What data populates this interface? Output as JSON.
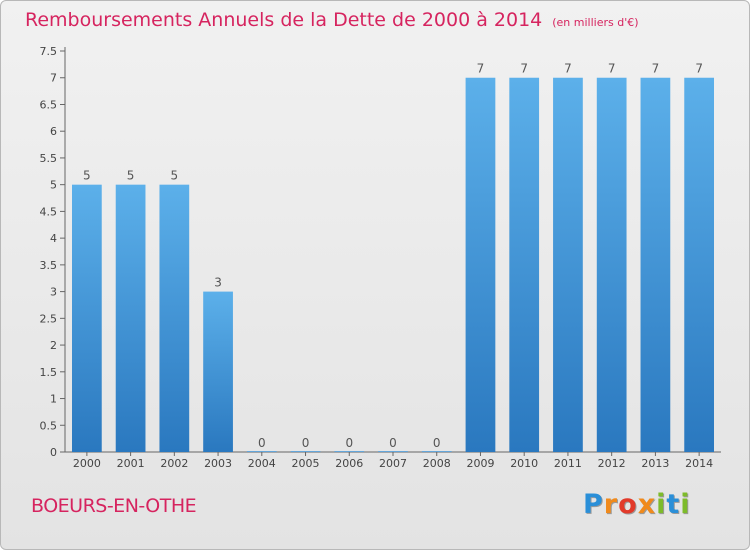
{
  "chart_data": {
    "type": "bar",
    "title": "Remboursements Annuels de la Dette de 2000 à 2014",
    "subtitle": "(en milliers d'€)",
    "categories": [
      "2000",
      "2001",
      "2002",
      "2003",
      "2004",
      "2005",
      "2006",
      "2007",
      "2008",
      "2009",
      "2010",
      "2011",
      "2012",
      "2013",
      "2014"
    ],
    "values": [
      5,
      5,
      5,
      3,
      0,
      0,
      0,
      0,
      0,
      7,
      7,
      7,
      7,
      7,
      7
    ],
    "value_labels": [
      "5",
      "5",
      "5",
      "3",
      "0",
      "0",
      "0",
      "0",
      "0",
      "7",
      "7",
      "7",
      "7",
      "7",
      "7"
    ],
    "ylim": [
      0,
      7.5
    ],
    "yticks": [
      0,
      0.5,
      1,
      1.5,
      2,
      2.5,
      3,
      3.5,
      4,
      4.5,
      5,
      5.5,
      6,
      6.5,
      7,
      7.5
    ],
    "ytick_labels": [
      "0",
      "0.5",
      "1",
      "1.5",
      "2",
      "2.5",
      "3",
      "3.5",
      "4",
      "4.5",
      "5",
      "5.5",
      "6",
      "6.5",
      "7",
      "7.5"
    ],
    "grid": false,
    "bar_color": "#3a8fd6"
  },
  "place": "BOEURS-EN-OTHE",
  "logo": "Proxiti"
}
